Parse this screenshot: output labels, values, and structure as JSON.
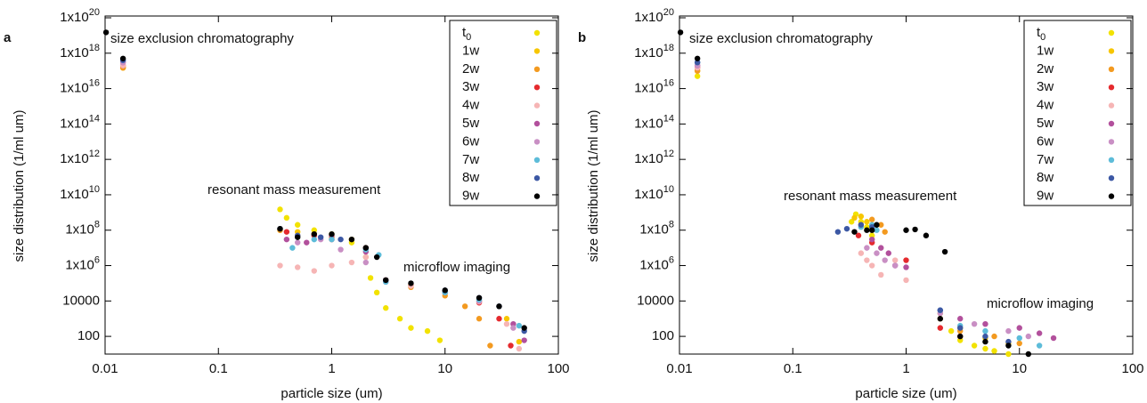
{
  "chart_data": [
    {
      "type": "scatter",
      "panel_label": "a",
      "xlabel": "particle size (um)",
      "ylabel": "size distribution (1/ml um)",
      "log_x": true,
      "log_y": true,
      "legend": "upper right",
      "xlim": [
        0.01,
        100
      ],
      "xticks": [
        0.01,
        0.1,
        1,
        10,
        100
      ],
      "ylim": [
        10,
        1e+20
      ],
      "yticks": [
        100,
        10000,
        {
          "value": 1000000.0,
          "label": "1x10^6"
        },
        {
          "value": 100000000.0,
          "label": "1x10^8"
        },
        {
          "value": 10000000000.0,
          "label": "1x10^10"
        },
        {
          "value": 1000000000000.0,
          "label": "1x10^12"
        },
        {
          "value": 100000000000000.0,
          "label": "1x10^14"
        },
        {
          "value": 1e+16,
          "label": "1x10^16"
        },
        {
          "value": 1e+18,
          "label": "1x10^18"
        },
        {
          "value": 1e+20,
          "label": "1x10^20"
        }
      ],
      "annotations": [
        "size exclusion chromatography",
        "resonant mass measurement",
        "microflow imaging"
      ],
      "series": [
        {
          "name": "t_0",
          "color": "#f2e200",
          "x": [
            0.0144,
            0.35,
            0.4,
            0.5,
            0.7,
            1,
            1.5,
            2,
            2.2,
            2.5,
            3,
            4,
            5,
            7,
            9
          ],
          "values": [
            1.5e+17,
            1500000000.0,
            500000000.0,
            200000000.0,
            100000000.0,
            60000000.0,
            20000000.0,
            3000000.0,
            200000.0,
            30000.0,
            4000.0,
            1000.0,
            300,
            200,
            60
          ]
        },
        {
          "name": "1w",
          "color": "#f7c600",
          "x": [
            0.0144,
            0.35,
            0.5,
            0.7,
            1,
            1.5,
            2,
            3,
            5,
            10,
            20,
            35,
            45
          ],
          "values": [
            1.5e+17,
            100000000.0,
            80000000.0,
            60000000.0,
            50000000.0,
            30000000.0,
            10000000.0,
            150000.0,
            80000.0,
            30000.0,
            10000.0,
            1000,
            50
          ]
        },
        {
          "name": "2w",
          "color": "#f39a20",
          "x": [
            0.0144,
            0.35,
            0.5,
            1,
            2,
            3,
            5,
            10,
            15,
            20,
            25
          ],
          "values": [
            1.5e+17,
            100000000.0,
            50000000.0,
            40000000.0,
            10000000.0,
            150000.0,
            60000.0,
            20000.0,
            5000,
            1000,
            30
          ]
        },
        {
          "name": "3w",
          "color": "#e52a2e",
          "x": [
            0.0144,
            0.4,
            0.7,
            1,
            2,
            3,
            5,
            10,
            20,
            30,
            38
          ],
          "values": [
            2e+17,
            80000000.0,
            50000000.0,
            30000000.0,
            10000000.0,
            150000.0,
            80000.0,
            30000.0,
            8000,
            1000,
            30
          ]
        },
        {
          "name": "4w",
          "color": "#f6b5b5",
          "x": [
            0.0144,
            0.35,
            0.5,
            0.7,
            1,
            1.5,
            2,
            3,
            5,
            10,
            20,
            35,
            45
          ],
          "values": [
            2e+17,
            1000000.0,
            800000.0,
            500000.0,
            1000000.0,
            1500000.0,
            3000000.0,
            120000.0,
            70000.0,
            30000.0,
            9000,
            500,
            20
          ]
        },
        {
          "name": "5w",
          "color": "#b2509c",
          "x": [
            0.0144,
            0.4,
            0.6,
            1,
            2,
            3,
            10,
            20,
            40,
            50
          ],
          "values": [
            3e+17,
            30000000.0,
            20000000.0,
            50000000.0,
            6000000.0,
            150000.0,
            30000.0,
            10000.0,
            500,
            60
          ]
        },
        {
          "name": "6w",
          "color": "#c98fc4",
          "x": [
            0.0144,
            0.5,
            0.8,
            1.2,
            2,
            3,
            10,
            20,
            40
          ],
          "values": [
            3e+17,
            20000000.0,
            30000000.0,
            8000000.0,
            1500000.0,
            120000.0,
            30000.0,
            10000.0,
            300
          ]
        },
        {
          "name": "7w",
          "color": "#5dbcd9",
          "x": [
            0.0144,
            0.45,
            0.7,
            1,
            2,
            2.6,
            3,
            10,
            20,
            45
          ],
          "values": [
            4e+17,
            10000000.0,
            30000000.0,
            30000000.0,
            8000000.0,
            4000000.0,
            120000.0,
            30000.0,
            12000.0,
            400
          ]
        },
        {
          "name": "8w",
          "color": "#3c58a4",
          "x": [
            0.0144,
            0.35,
            0.5,
            0.8,
            1.2,
            2,
            3,
            10,
            20,
            30,
            50
          ],
          "values": [
            4e+17,
            120000000.0,
            50000000.0,
            40000000.0,
            30000000.0,
            10000000.0,
            150000.0,
            40000.0,
            15000.0,
            5000,
            200
          ]
        },
        {
          "name": "9w",
          "color": "#000000",
          "x": [
            0.0102,
            0.0144,
            0.35,
            0.5,
            0.7,
            1,
            1.5,
            2,
            2.5,
            3,
            5,
            10,
            20,
            30,
            50
          ],
          "values": [
            1.5e+19,
            5e+17,
            120000000.0,
            40000000.0,
            60000000.0,
            60000000.0,
            30000000.0,
            10000000.0,
            3000000.0,
            150000.0,
            100000.0,
            40000.0,
            15000.0,
            5000,
            300
          ]
        }
      ]
    },
    {
      "type": "scatter",
      "panel_label": "b",
      "xlabel": "particle size (um)",
      "ylabel": "size distribution (1/ml um)",
      "log_x": true,
      "log_y": true,
      "legend": "upper right",
      "xlim": [
        0.01,
        100
      ],
      "xticks": [
        0.01,
        0.1,
        1,
        10,
        100
      ],
      "ylim": [
        10,
        1e+20
      ],
      "yticks": [
        100,
        10000,
        {
          "value": 1000000.0,
          "label": "1x10^6"
        },
        {
          "value": 100000000.0,
          "label": "1x10^8"
        },
        {
          "value": 10000000000.0,
          "label": "1x10^10"
        },
        {
          "value": 1000000000000.0,
          "label": "1x10^12"
        },
        {
          "value": 100000000000000.0,
          "label": "1x10^14"
        },
        {
          "value": 1e+16,
          "label": "1x10^16"
        },
        {
          "value": 1e+18,
          "label": "1x10^18"
        },
        {
          "value": 1e+20,
          "label": "1x10^20"
        }
      ],
      "annotations": [
        "size exclusion chromatography",
        "resonant mass measurement",
        "microflow imaging"
      ],
      "series": [
        {
          "name": "t_0",
          "color": "#f2e200",
          "x": [
            0.0144,
            0.33,
            0.36,
            0.4,
            0.45,
            0.5,
            2.5,
            3,
            4,
            5,
            6,
            8
          ],
          "values": [
            5e+16,
            300000000.0,
            800000000.0,
            300000000.0,
            150000000.0,
            50000000.0,
            200,
            60,
            30,
            20,
            15,
            10
          ]
        },
        {
          "name": "1w",
          "color": "#f7c600",
          "x": [
            0.0144,
            0.35,
            0.4,
            0.45,
            0.5,
            2,
            3,
            5,
            8
          ],
          "values": [
            1e+17,
            500000000.0,
            600000000.0,
            300000000.0,
            100000000.0,
            2000,
            300,
            80,
            40
          ]
        },
        {
          "name": "2w",
          "color": "#f39a20",
          "x": [
            0.0144,
            0.4,
            0.5,
            0.6,
            0.65,
            2,
            3,
            6,
            10
          ],
          "values": [
            1e+17,
            200000000.0,
            400000000.0,
            200000000.0,
            80000000.0,
            1000,
            200,
            100,
            40
          ]
        },
        {
          "name": "3w",
          "color": "#e52a2e",
          "x": [
            0.0144,
            0.38,
            0.5,
            1,
            2,
            3
          ],
          "values": [
            1.5e+17,
            50000000.0,
            20000000.0,
            2000000.0,
            300,
            100
          ]
        },
        {
          "name": "4w",
          "color": "#f6b5b5",
          "x": [
            0.0144,
            0.4,
            0.45,
            0.5,
            0.6,
            0.8,
            1
          ],
          "values": [
            1.5e+17,
            5000000.0,
            2000000.0,
            1000000.0,
            300000.0,
            2000000.0,
            150000.0
          ]
        },
        {
          "name": "5w",
          "color": "#b2509c",
          "x": [
            0.0144,
            0.5,
            0.6,
            0.7,
            0.8,
            1,
            2,
            3,
            5,
            10,
            15,
            20
          ],
          "values": [
            2e+17,
            30000000.0,
            10000000.0,
            5000000.0,
            1000000.0,
            800000.0,
            3000,
            1000,
            500,
            300,
            150,
            80
          ]
        },
        {
          "name": "6w",
          "color": "#c98fc4",
          "x": [
            0.0144,
            0.45,
            0.55,
            0.65,
            0.8,
            2,
            4,
            8,
            12
          ],
          "values": [
            2e+17,
            10000000.0,
            5000000.0,
            2000000.0,
            1000000.0,
            2000,
            500,
            200,
            100
          ]
        },
        {
          "name": "7w",
          "color": "#5dbcd9",
          "x": [
            0.0144,
            0.4,
            0.5,
            0.55,
            2,
            3,
            5,
            10,
            15
          ],
          "values": [
            3e+17,
            150000000.0,
            200000000.0,
            100000000.0,
            3000,
            400,
            200,
            80,
            30
          ]
        },
        {
          "name": "8w",
          "color": "#3c58a4",
          "x": [
            0.0144,
            0.25,
            0.3,
            0.4,
            0.5,
            2,
            3,
            5,
            8
          ],
          "values": [
            3e+17,
            80000000.0,
            120000000.0,
            200000000.0,
            150000000.0,
            3000,
            300,
            100,
            50
          ]
        },
        {
          "name": "9w",
          "color": "#000000",
          "x": [
            0.0102,
            0.0144,
            0.35,
            0.45,
            0.5,
            0.55,
            1,
            1.2,
            1.5,
            2.2,
            2,
            3,
            5,
            8,
            12
          ],
          "values": [
            1.5e+19,
            5e+17,
            80000000.0,
            100000000.0,
            100000000.0,
            200000000.0,
            100000000.0,
            110000000.0,
            50000000.0,
            6000000.0,
            1000,
            100,
            50,
            30,
            10
          ]
        }
      ]
    }
  ]
}
